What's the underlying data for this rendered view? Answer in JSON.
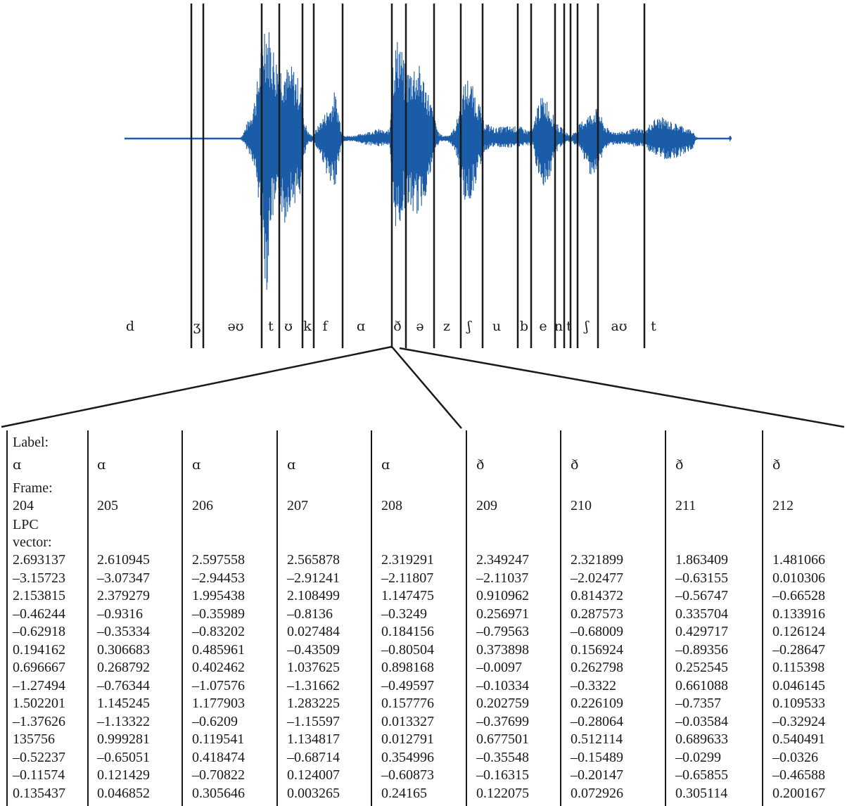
{
  "colors": {
    "waveform": "#1a5ca8",
    "lines": "#1a1a1a"
  },
  "phonemes": [
    "d",
    "ʒ",
    "əʊ",
    "t",
    "ʊ",
    "k",
    "f",
    "ɑ",
    "ð",
    "ə",
    "z",
    "ʃ",
    "u",
    "b",
    "e",
    "n",
    "t",
    "ʃ",
    "aʊ",
    "t"
  ],
  "table": {
    "label_heading": "Label:",
    "frame_heading": "Frame:",
    "lpc_heading_1": "LPC",
    "lpc_heading_2": "vector:",
    "columns": [
      {
        "label": "ɑ",
        "frame": "204",
        "lpc": [
          "2.693137",
          "–3.15723",
          "2.153815",
          "–0.46244",
          "–0.62918",
          "0.194162",
          "0.696667",
          "–1.27494",
          "1.502201",
          "–1.37626",
          "135756",
          "–0.52237",
          "–0.11574",
          "0.135437"
        ]
      },
      {
        "label": "ɑ",
        "frame": "205",
        "lpc": [
          "2.610945",
          "–3.07347",
          "2.379279",
          "–0.9316",
          "–0.35334",
          "0.306683",
          "0.268792",
          "–0.76344",
          "1.145245",
          "–1.13322",
          "0.999281",
          "–0.65051",
          "0.121429",
          "0.046852"
        ]
      },
      {
        "label": "ɑ",
        "frame": "206",
        "lpc": [
          "2.597558",
          "–2.94453",
          "1.995438",
          "–0.35989",
          "–0.83202",
          "0.485961",
          "0.402462",
          "–1.07576",
          "1.177903",
          "–0.6209",
          "0.119541",
          "0.418474",
          "–0.70822",
          "0.305646"
        ]
      },
      {
        "label": "ɑ",
        "frame": "207",
        "lpc": [
          "2.565878",
          "–2.91241",
          "2.108499",
          "–0.8136",
          "0.027484",
          "–0.43509",
          "1.037625",
          "–1.31662",
          "1.283225",
          "–1.15597",
          "1.134817",
          "–0.68714",
          "0.124007",
          "0.003265"
        ]
      },
      {
        "label": "ɑ",
        "frame": "208",
        "lpc": [
          "2.319291",
          "–2.11807",
          "1.147475",
          "–0.3249",
          "0.184156",
          "–0.80504",
          "0.898168",
          "–0.49597",
          "0.157776",
          "0.013327",
          "0.012791",
          "0.354996",
          "–0.60873",
          "0.24165"
        ]
      },
      {
        "label": "ð",
        "frame": "209",
        "lpc": [
          "2.349247",
          "–2.11037",
          "0.910962",
          "0.256971",
          "–0.79563",
          "0.373898",
          "–0.0097",
          "–0.10334",
          "0.202759",
          "–0.37699",
          "0.677501",
          "–0.35548",
          "–0.16315",
          "0.122075"
        ]
      },
      {
        "label": "ð",
        "frame": "210",
        "lpc": [
          "2.321899",
          "–2.02477",
          "0.814372",
          "0.287573",
          "–0.68009",
          "0.156924",
          "0.262798",
          "–0.3322",
          "0.226109",
          "–0.28064",
          "0.512114",
          "–0.15489",
          "–0.20147",
          "0.072926"
        ]
      },
      {
        "label": "ð",
        "frame": "211",
        "lpc": [
          "1.863409",
          "–0.63155",
          "–0.56747",
          "0.335704",
          "0.429717",
          "–0.89356",
          "0.252545",
          "0.661088",
          "–0.7357",
          "–0.03584",
          "0.689633",
          "–0.0299",
          "–0.65855",
          "0.305114"
        ]
      },
      {
        "label": "ð",
        "frame": "212",
        "lpc": [
          "1.481066",
          "0.010306",
          "–0.66528",
          "0.133916",
          "0.126124",
          "–0.28647",
          "0.115398",
          "0.046145",
          "0.109533",
          "–0.32924",
          "0.540491",
          "–0.0326",
          "–0.46588",
          "0.200167"
        ]
      }
    ]
  }
}
